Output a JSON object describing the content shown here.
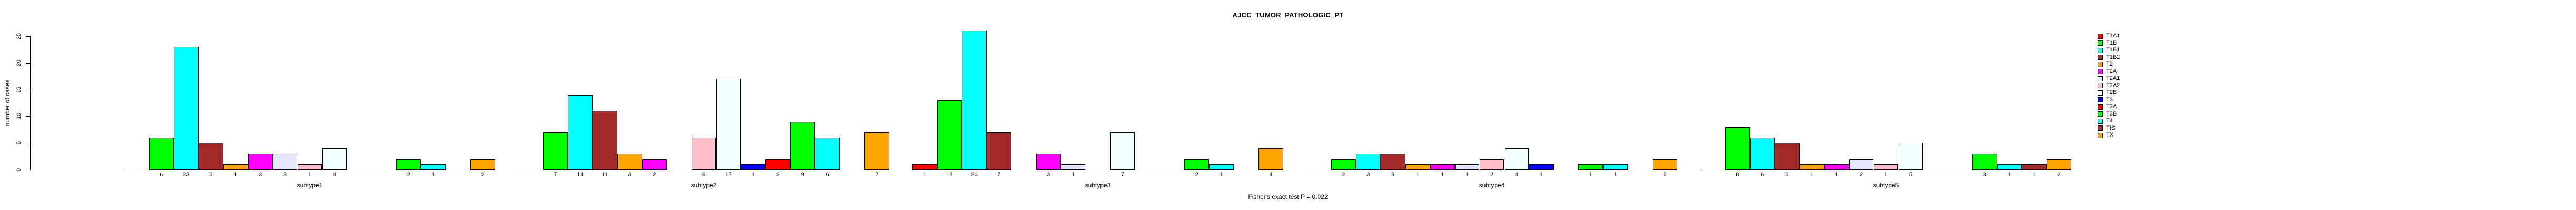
{
  "title": "AJCC_TUMOR_PATHOLOGIC_PT",
  "caption": "Fisher's exact test P = 0.022",
  "y_axis": {
    "label": "number of cases",
    "ticks": [
      0,
      5,
      10,
      15,
      20,
      25
    ]
  },
  "legend": {
    "entries": [
      {
        "label": "T1A1",
        "color": "#FF0000"
      },
      {
        "label": "T1B",
        "color": "#00FF00"
      },
      {
        "label": "T1B1",
        "color": "#00FFFF"
      },
      {
        "label": "T1B2",
        "color": "#A52A2A"
      },
      {
        "label": "T2",
        "color": "#FFA500"
      },
      {
        "label": "T2A",
        "color": "#FF00FF"
      },
      {
        "label": "T2A1",
        "color": "#E6E6FA"
      },
      {
        "label": "T2A2",
        "color": "#FFC0CB"
      },
      {
        "label": "T2B",
        "color": "#F0FFFF"
      },
      {
        "label": "T3",
        "color": "#0000FF"
      },
      {
        "label": "T3A",
        "color": "#FF0000"
      },
      {
        "label": "T3B",
        "color": "#00FF00"
      },
      {
        "label": "T4",
        "color": "#00FFFF"
      },
      {
        "label": "TIS",
        "color": "#A52A2A"
      },
      {
        "label": "TX",
        "color": "#FFA500"
      }
    ]
  },
  "chart_data": {
    "type": "bar",
    "title": "AJCC_TUMOR_PATHOLOGIC_PT",
    "xlabel": "",
    "ylabel": "number of cases",
    "ylim": [
      0,
      25
    ],
    "grid": false,
    "legend_position": "top-right",
    "annotation": "Fisher's exact test P = 0.022",
    "groups": [
      "subtype1",
      "subtype2",
      "subtype3",
      "subtype4",
      "subtype5"
    ],
    "categories": [
      "T1A1",
      "T1B",
      "T1B1",
      "T1B2",
      "T2",
      "T2A",
      "T2A1",
      "T2A2",
      "T2B",
      "T3",
      "T3A",
      "T3B",
      "T4",
      "TIS",
      "TX"
    ],
    "colors": [
      "#FF0000",
      "#00FF00",
      "#00FFFF",
      "#A52A2A",
      "#FFA500",
      "#FF00FF",
      "#E6E6FA",
      "#FFC0CB",
      "#F0FFFF",
      "#0000FF",
      "#FF0000",
      "#00FF00",
      "#00FFFF",
      "#A52A2A",
      "#FFA500"
    ],
    "series": [
      {
        "name": "T1A1",
        "values": [
          0,
          0,
          1,
          0,
          0
        ]
      },
      {
        "name": "T1B",
        "values": [
          6,
          7,
          13,
          2,
          8
        ]
      },
      {
        "name": "T1B1",
        "values": [
          23,
          14,
          26,
          3,
          6
        ]
      },
      {
        "name": "T1B2",
        "values": [
          5,
          11,
          7,
          3,
          5
        ]
      },
      {
        "name": "T2",
        "values": [
          1,
          3,
          0,
          1,
          1
        ]
      },
      {
        "name": "T2A",
        "values": [
          3,
          2,
          3,
          1,
          1
        ]
      },
      {
        "name": "T2A1",
        "values": [
          3,
          0,
          1,
          1,
          2
        ]
      },
      {
        "name": "T2A2",
        "values": [
          1,
          6,
          0,
          2,
          1
        ]
      },
      {
        "name": "T2B",
        "values": [
          4,
          17,
          7,
          4,
          5
        ]
      },
      {
        "name": "T3",
        "values": [
          0,
          1,
          0,
          1,
          0
        ]
      },
      {
        "name": "T3A",
        "values": [
          0,
          2,
          0,
          0,
          0
        ]
      },
      {
        "name": "T3B",
        "values": [
          2,
          9,
          2,
          1,
          3
        ]
      },
      {
        "name": "T4",
        "values": [
          1,
          6,
          1,
          1,
          1
        ]
      },
      {
        "name": "TIS",
        "values": [
          0,
          0,
          0,
          0,
          1
        ]
      },
      {
        "name": "TX",
        "values": [
          2,
          7,
          4,
          2,
          2
        ]
      }
    ],
    "bar_value_labels_shown": true
  }
}
